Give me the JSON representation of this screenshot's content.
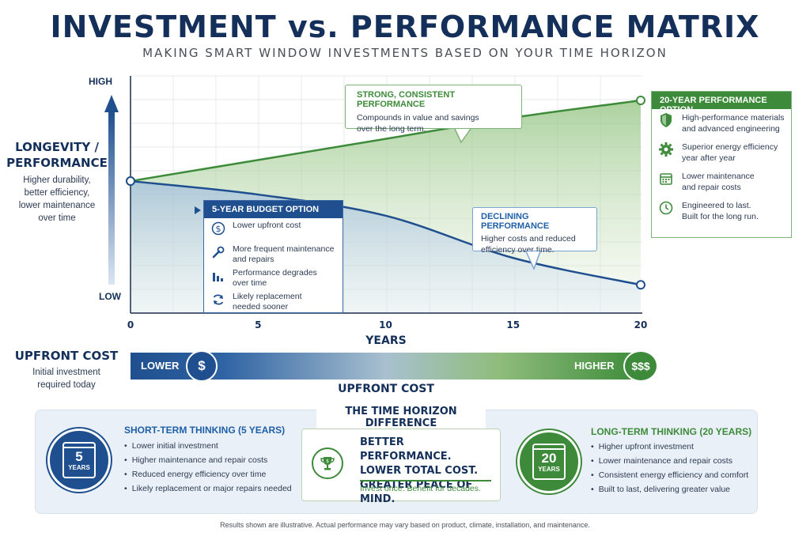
{
  "header": {
    "title": "INVESTMENT vs. PERFORMANCE MATRIX",
    "subtitle": "MAKING SMART WINDOW INVESTMENTS BASED ON YOUR TIME HORIZON"
  },
  "y_axis": {
    "title_line1": "LONGEVITY /",
    "title_line2": "PERFORMANCE",
    "desc_line1": "Higher durability,",
    "desc_line2": "better efficiency,",
    "desc_line3": "lower maintenance",
    "desc_line4": "over time",
    "high": "HIGH",
    "low": "LOW"
  },
  "x_axis": {
    "label": "YEARS",
    "ticks": [
      "0",
      "5",
      "10",
      "15",
      "20"
    ]
  },
  "chart_data": {
    "type": "line",
    "xlabel": "YEARS",
    "ylabel": "LONGEVITY / PERFORMANCE",
    "x": [
      0,
      5,
      10,
      15,
      20
    ],
    "xlim": [
      0,
      20
    ],
    "ylim": [
      "LOW",
      "HIGH"
    ],
    "grid": true,
    "series": [
      {
        "name": "20-YEAR PERFORMANCE OPTION",
        "color": "#3d8b3a",
        "x": [
          0,
          5,
          10,
          15,
          20
        ],
        "values": [
          0.58,
          0.69,
          0.8,
          0.91,
          1.0
        ]
      },
      {
        "name": "5-YEAR BUDGET OPTION",
        "color": "#1f4f8e",
        "x": [
          0,
          5,
          10,
          15,
          20
        ],
        "values": [
          0.58,
          0.51,
          0.4,
          0.18,
          0.04
        ]
      }
    ]
  },
  "callouts": {
    "strong_title": "STRONG, CONSISTENT PERFORMANCE",
    "strong_line1": "Compounds in value and savings",
    "strong_line2": "over the long term.",
    "decline_title": "DECLINING PERFORMANCE",
    "decline_line1": "Higher costs and reduced",
    "decline_line2": "efficiency over time."
  },
  "budget_option": {
    "title": "5-YEAR BUDGET OPTION",
    "items": [
      {
        "icon": "dollar-icon",
        "line1": "Lower upfront cost",
        "line2": ""
      },
      {
        "icon": "wrench-icon",
        "line1": "More frequent maintenance",
        "line2": "and repairs"
      },
      {
        "icon": "declining-bars-icon",
        "line1": "Performance degrades",
        "line2": "over time"
      },
      {
        "icon": "refresh-icon",
        "line1": "Likely replacement",
        "line2": "needed sooner"
      }
    ]
  },
  "performance_option": {
    "title": "20-YEAR PERFORMANCE OPTION",
    "items": [
      {
        "icon": "shield-icon",
        "line1": "High-performance materials",
        "line2": "and advanced engineering"
      },
      {
        "icon": "gear-icon",
        "line1": "Superior energy efficiency",
        "line2": "year after year"
      },
      {
        "icon": "calendar-icon",
        "line1": "Lower maintenance",
        "line2": "and repair costs"
      },
      {
        "icon": "clock-icon",
        "line1": "Engineered to last.",
        "line2": "Built for the long run."
      }
    ]
  },
  "upfront_cost": {
    "title": "UPFRONT COST",
    "desc_line1": "Initial investment",
    "desc_line2": "required today",
    "lower": "LOWER",
    "higher": "HIGHER",
    "lower_symbol": "$",
    "higher_symbol": "$$$",
    "axis_label": "UPFRONT COST"
  },
  "bottom": {
    "title": "THE TIME HORIZON DIFFERENCE",
    "short": {
      "title": "SHORT-TERM THINKING (5 YEARS)",
      "badge_num": "5",
      "badge_unit": "YEARS",
      "items": [
        "Lower initial investment",
        "Higher maintenance and repair costs",
        "Reduced energy efficiency over time",
        "Likely replacement or major repairs needed"
      ]
    },
    "center": {
      "line1": "BETTER PERFORMANCE.",
      "line2": "LOWER TOTAL COST.",
      "line3": "GREATER PEACE OF MIND.",
      "sub": "Invest once. Benefit for decades."
    },
    "long": {
      "title": "LONG-TERM THINKING (20 YEARS)",
      "badge_num": "20",
      "badge_unit": "YEARS",
      "items": [
        "Higher upfront investment",
        "Lower maintenance and repair costs",
        "Consistent energy efficiency and comfort",
        "Built to last, delivering greater value"
      ]
    }
  },
  "footnote": "Results shown are illustrative. Actual performance may vary based on product, climate, installation, and maintenance."
}
